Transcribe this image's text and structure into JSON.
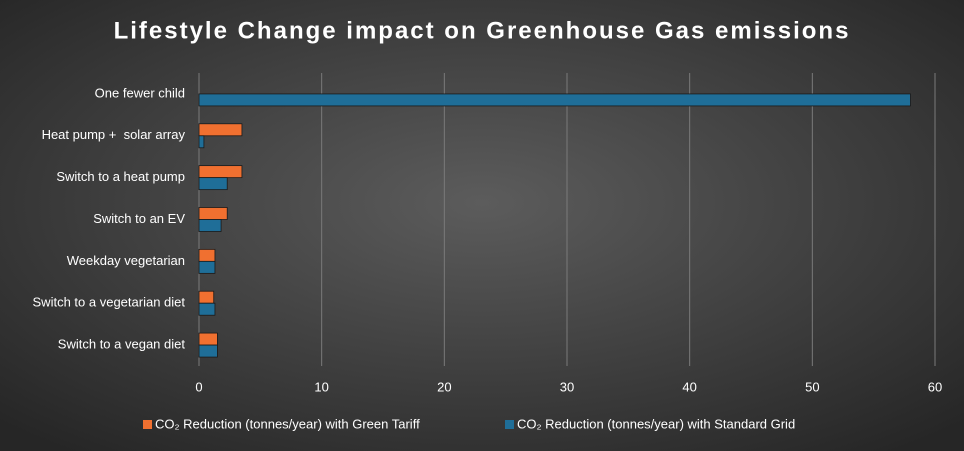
{
  "chart_data": {
    "type": "bar",
    "orientation": "horizontal",
    "title": "Lifestyle Change impact on Greenhouse Gas emissions",
    "categories": [
      "One fewer child",
      "Heat pump +  solar array",
      "Switch to a heat pump",
      "Switch to an EV",
      "Weekday vegetarian",
      "Switch to a vegetarian diet",
      "Switch to a vegan diet"
    ],
    "series": [
      {
        "name": "CO₂ Reduction (tonnes/year) with Green Tariff",
        "color": "#f07030",
        "values": [
          null,
          3.5,
          3.5,
          2.3,
          1.3,
          1.2,
          1.5
        ]
      },
      {
        "name": "CO₂ Reduction (tonnes/year) with Standard Grid",
        "color": "#1f6e98",
        "values": [
          58,
          0.4,
          2.3,
          1.8,
          1.3,
          1.3,
          1.5
        ]
      }
    ],
    "xlim": [
      0,
      60
    ],
    "xticks": [
      0,
      10,
      20,
      30,
      40,
      50,
      60
    ],
    "grid": true,
    "legend": "bottom"
  }
}
